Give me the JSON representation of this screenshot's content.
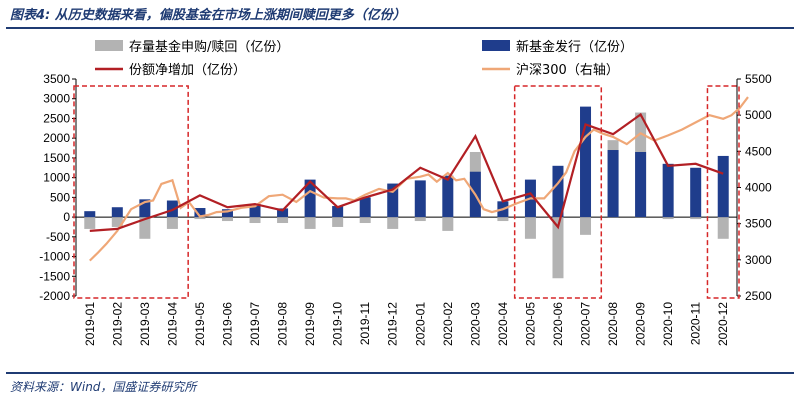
{
  "title": "图表4: 从历史数据来看，偏股基金在市场上涨期间赎回更多（亿份）",
  "source": "资料来源：Wind，国盛证券研究所",
  "colors": {
    "new_fund": "#1f3d8c",
    "redeem": "#b3b3b3",
    "net": "#b21f24",
    "hs300": "#efa777",
    "box": "#d62728",
    "header": "#1f3b73"
  },
  "chart_data": {
    "type": "bar",
    "categories": [
      "2019-01",
      "2019-02",
      "2019-03",
      "2019-04",
      "2019-05",
      "2019-06",
      "2019-07",
      "2019-08",
      "2019-09",
      "2019-10",
      "2019-11",
      "2019-12",
      "2020-01",
      "2020-02",
      "2020-03",
      "2020-04",
      "2020-05",
      "2020-06",
      "2020-07",
      "2020-08",
      "2020-09",
      "2020-10",
      "2020-11",
      "2020-12"
    ],
    "series": [
      {
        "name": "存量基金申购/赎回（亿份）",
        "kind": "bar",
        "values": [
          -300,
          -250,
          -550,
          -300,
          -50,
          -100,
          -150,
          -150,
          -300,
          -250,
          -150,
          -300,
          -100,
          -350,
          1650,
          -100,
          -550,
          -1550,
          -450,
          1950,
          2650,
          -50,
          -50,
          -550
        ]
      },
      {
        "name": "新基金发行（亿份）",
        "kind": "bar",
        "values": [
          150,
          250,
          450,
          420,
          230,
          200,
          330,
          220,
          950,
          280,
          500,
          850,
          930,
          1050,
          1150,
          400,
          950,
          1300,
          2800,
          1700,
          1650,
          1350,
          1250,
          1550
        ]
      },
      {
        "name": "份额净增加（亿份）",
        "kind": "line",
        "values": [
          -350,
          -300,
          -50,
          180,
          550,
          250,
          330,
          170,
          900,
          250,
          500,
          700,
          1250,
          950,
          2050,
          400,
          600,
          -250,
          2350,
          2100,
          2600,
          1300,
          1350,
          1100
        ]
      },
      {
        "name": "沪深300（右轴）",
        "kind": "line",
        "axis": "right",
        "x": [
          0,
          0.3,
          0.6,
          1,
          1.5,
          2,
          2.3,
          2.6,
          3,
          3.3,
          3.6,
          4,
          4.3,
          4.6,
          5,
          5.5,
          6,
          6.5,
          7,
          7.5,
          8,
          8.5,
          9,
          9.3,
          9.6,
          10,
          10.5,
          11,
          11.5,
          12,
          12.3,
          12.6,
          13,
          13.3,
          13.6,
          14,
          14.3,
          14.6,
          15,
          15.5,
          16,
          16.5,
          17,
          17.3,
          17.6,
          18,
          18.3,
          18.6,
          19,
          19.5,
          20,
          20.5,
          21,
          21.5,
          22,
          22.5,
          23,
          23.3,
          23.6,
          23.9
        ],
        "values": [
          2990,
          3100,
          3220,
          3400,
          3700,
          3800,
          3820,
          4050,
          4100,
          3720,
          3800,
          3600,
          3620,
          3660,
          3670,
          3720,
          3740,
          3880,
          3900,
          3800,
          3950,
          3860,
          3850,
          3850,
          3820,
          3900,
          3980,
          3940,
          4120,
          4150,
          4180,
          4080,
          4200,
          4100,
          4120,
          3900,
          3700,
          3660,
          3700,
          3780,
          3850,
          3850,
          4060,
          4210,
          4500,
          4700,
          4800,
          4750,
          4700,
          4600,
          4750,
          4650,
          4720,
          4800,
          4900,
          5000,
          4950,
          5000,
          5100,
          5250
        ]
      }
    ],
    "legend": [
      "存量基金申购/赎回（亿份）",
      "新基金发行（亿份）",
      "份额净增加（亿份）",
      "沪深300（右轴）"
    ],
    "ylim": [
      -2000,
      3500
    ],
    "y2lim": [
      2500,
      5500
    ],
    "yticks": [
      -2000,
      -1500,
      -1000,
      -500,
      0,
      500,
      1000,
      1500,
      2000,
      2500,
      3000,
      3500
    ],
    "y2ticks": [
      2500,
      3000,
      3500,
      4000,
      4500,
      5000,
      5500
    ],
    "highlight_boxes": [
      [
        0,
        3
      ],
      [
        16,
        18
      ],
      [
        23,
        23
      ]
    ],
    "legend_placement": "top",
    "grid": false
  }
}
